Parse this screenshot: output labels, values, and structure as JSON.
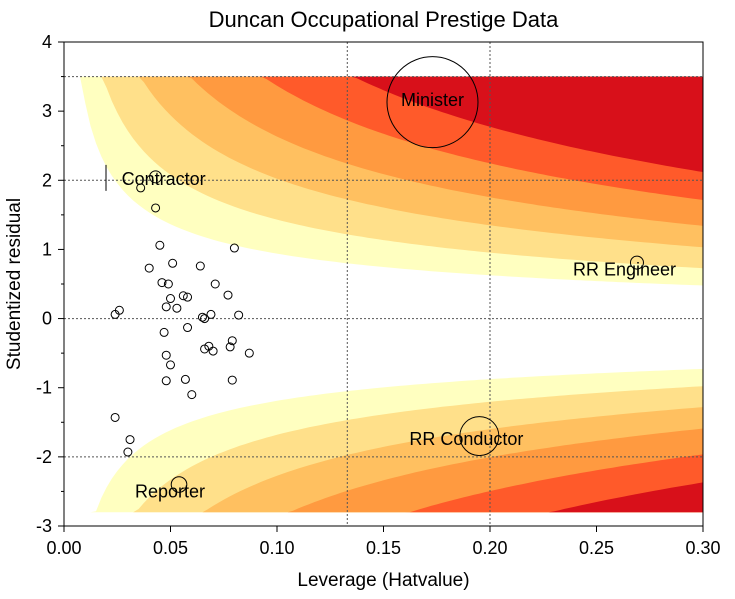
{
  "chart_data": {
    "type": "scatter",
    "title": "Duncan Occupational Prestige Data",
    "xlabel": "Leverage (Hatvalue)",
    "ylabel": "Studentized residual",
    "xlim": [
      0.0,
      0.3
    ],
    "ylim": [
      -3,
      4
    ],
    "x_ticks": [
      "0.00",
      "0.05",
      "0.10",
      "0.15",
      "0.20",
      "0.25",
      "0.30"
    ],
    "y_ticks": [
      "-3",
      "-2",
      "-1",
      "0",
      "1",
      "2",
      "3",
      "4"
    ],
    "reference_lines": {
      "horizontal": [
        -2,
        0,
        2,
        3.5
      ],
      "vertical": [
        0.133,
        0.2
      ]
    },
    "background": "Cook's distance contour bands (pale yellow to red)",
    "band_colors": [
      "#FFFFC0",
      "#FFE08A",
      "#FFC060",
      "#FF9A40",
      "#FF5A2A",
      "#D8101A"
    ],
    "point_color": "#000000",
    "labeled_points": [
      {
        "label": "Minister",
        "x": 0.173,
        "y": 3.13,
        "bubble": 0.7
      },
      {
        "label": "Contractor",
        "x": 0.043,
        "y": 2.05,
        "bubble": 0.08
      },
      {
        "label": "RR Engineer",
        "x": 0.269,
        "y": 0.81,
        "bubble": 0.1
      },
      {
        "label": "RR Conductor",
        "x": 0.195,
        "y": -1.7,
        "bubble": 0.3
      },
      {
        "label": "Reporter",
        "x": 0.054,
        "y": -2.4,
        "bubble": 0.12
      }
    ],
    "points": [
      [
        0.024,
        0.06
      ],
      [
        0.026,
        0.12
      ],
      [
        0.024,
        -1.43
      ],
      [
        0.031,
        -1.75
      ],
      [
        0.03,
        -1.93
      ],
      [
        0.036,
        1.89
      ],
      [
        0.04,
        0.73
      ],
      [
        0.043,
        1.6
      ],
      [
        0.045,
        1.06
      ],
      [
        0.046,
        0.52
      ],
      [
        0.047,
        -0.2
      ],
      [
        0.048,
        -0.53
      ],
      [
        0.048,
        0.17
      ],
      [
        0.048,
        -0.9
      ],
      [
        0.049,
        0.5
      ],
      [
        0.05,
        0.29
      ],
      [
        0.051,
        0.8
      ],
      [
        0.05,
        -0.67
      ],
      [
        0.053,
        0.15
      ],
      [
        0.056,
        0.33
      ],
      [
        0.057,
        -0.88
      ],
      [
        0.058,
        -0.13
      ],
      [
        0.058,
        0.31
      ],
      [
        0.06,
        -1.1
      ],
      [
        0.064,
        0.76
      ],
      [
        0.065,
        0.02
      ],
      [
        0.066,
        -0.44
      ],
      [
        0.066,
        0.0
      ],
      [
        0.068,
        -0.4
      ],
      [
        0.069,
        0.06
      ],
      [
        0.07,
        -0.47
      ],
      [
        0.071,
        0.5
      ],
      [
        0.077,
        0.34
      ],
      [
        0.078,
        -0.41
      ],
      [
        0.079,
        -0.32
      ],
      [
        0.079,
        -0.89
      ],
      [
        0.08,
        1.02
      ],
      [
        0.082,
        0.05
      ],
      [
        0.087,
        -0.5
      ]
    ]
  }
}
